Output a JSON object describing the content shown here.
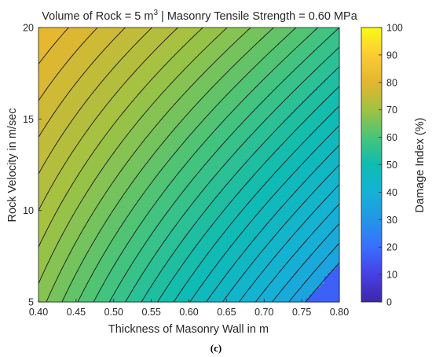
{
  "caption": "(c)",
  "chart_data": {
    "type": "heatmap",
    "subtype": "filled-contour",
    "title": "Volume of Rock = 5 m³ | Masonry Tensile Strength = 0.60 MPa",
    "title_parts": {
      "before": "Volume of Rock = 5 m",
      "sup": "3",
      "after": " | Masonry Tensile Strength = 0.60 MPa"
    },
    "xlabel": "Thickness of Masonry Wall in m",
    "ylabel": "Rock Velocity in m/sec",
    "xlim": [
      0.4,
      0.8
    ],
    "ylim": [
      5,
      20
    ],
    "xticks": [
      "0.40",
      "0.45",
      "0.50",
      "0.55",
      "0.60",
      "0.65",
      "0.70",
      "0.75",
      "0.80"
    ],
    "yticks": [
      "5",
      "10",
      "15",
      "20"
    ],
    "colorbar": {
      "label": "Damage Index (%)",
      "colormap": "parula",
      "range": [
        0,
        100
      ],
      "ticks": [
        "0",
        "10",
        "20",
        "30",
        "40",
        "50",
        "60",
        "70",
        "80",
        "90",
        "100"
      ]
    },
    "z_samples": {
      "description": "Damage Index (%) estimated at grid corners",
      "x": [
        0.4,
        0.8
      ],
      "y": [
        5,
        20
      ],
      "values": [
        [
          67,
          30
        ],
        [
          82,
          58
        ]
      ]
    },
    "contour_levels": [
      34,
      36,
      38,
      40,
      42,
      44,
      46,
      48,
      50,
      52,
      54,
      56,
      58,
      60,
      62,
      64,
      66,
      68,
      70,
      72,
      74,
      76,
      78,
      80
    ],
    "grid": false
  }
}
